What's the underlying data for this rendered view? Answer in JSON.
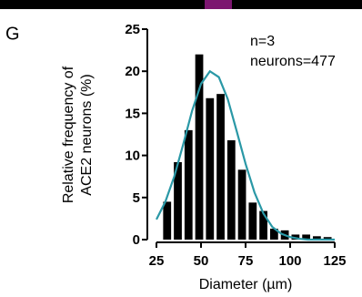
{
  "panel_label": "G",
  "chart_data": {
    "type": "histogram",
    "xlabel": "Diameter (µm)",
    "ylabel": [
      "Relative frequency of",
      "ACE2 neurons (%)"
    ],
    "annotations": [
      "n=3",
      "neurons=477"
    ],
    "bins": [
      28,
      34,
      40,
      46,
      52,
      58,
      64,
      70,
      76,
      82,
      88,
      94,
      100,
      106,
      112,
      118,
      124
    ],
    "values": [
      4.5,
      9.2,
      13,
      22,
      16.8,
      17.3,
      11.8,
      8.3,
      4.4,
      3.4,
      1.3,
      1.1,
      0.6,
      0.6,
      0.4,
      0.3
    ],
    "color": "#000000",
    "curve": {
      "color": "#2a98a6",
      "x": [
        25,
        30,
        35,
        40,
        45,
        50,
        55,
        60,
        65,
        70,
        75,
        80,
        85,
        90,
        95,
        100,
        105,
        110,
        115,
        120,
        125
      ],
      "values": [
        2.4,
        4.5,
        7.5,
        11.3,
        15.3,
        18.5,
        20,
        19.3,
        16.7,
        12.9,
        9,
        5.6,
        3.1,
        1.5,
        0.7,
        0.3,
        0.1,
        0,
        0,
        0,
        0
      ]
    },
    "xlim": [
      25,
      125
    ],
    "xticks": [
      25,
      50,
      75,
      100,
      125
    ],
    "ylim": [
      0,
      25
    ],
    "yticks": [
      0,
      5,
      10,
      15,
      20,
      25
    ]
  }
}
